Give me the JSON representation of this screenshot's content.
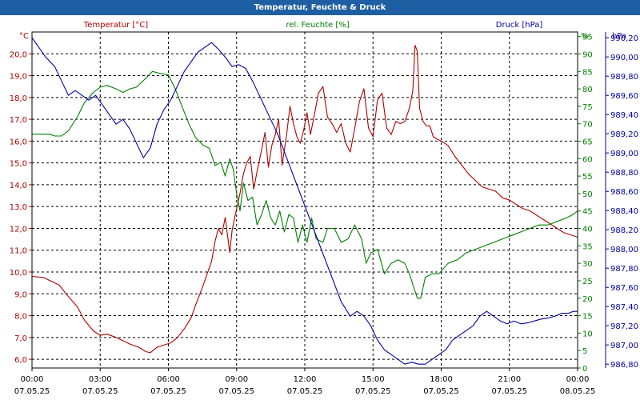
{
  "window": {
    "title": "Temperatur, Feuchte & Druck"
  },
  "chart_data": {
    "type": "line",
    "title": "Temperatur, Feuchte & Druck",
    "grid": true,
    "x_ticks": [
      {
        "time": "00:00",
        "date": "07.05.25"
      },
      {
        "time": "03:00",
        "date": "07.05.25"
      },
      {
        "time": "06:00",
        "date": "07.05.25"
      },
      {
        "time": "09:00",
        "date": "07.05.25"
      },
      {
        "time": "12:00",
        "date": "07.05.25"
      },
      {
        "time": "15:00",
        "date": "07.05.25"
      },
      {
        "time": "18:00",
        "date": "07.05.25"
      },
      {
        "time": "21:00",
        "date": "07.05.25"
      },
      {
        "time": "00:00",
        "date": "08.05.25"
      }
    ],
    "x_range_hours": [
      0,
      24
    ],
    "axes": {
      "temperature": {
        "label": "Temperatur [°C]",
        "unit": "°C",
        "color": "#b00000",
        "ylim": [
          5.6,
          21.0
        ],
        "ticks": [
          "6,0",
          "7,0",
          "8,0",
          "9,0",
          "10,0",
          "11,0",
          "12,0",
          "13,0",
          "14,0",
          "15,0",
          "16,0",
          "17,0",
          "18,0",
          "19,0",
          "20,0"
        ]
      },
      "humidity": {
        "label": "rel. Feuchte [%]",
        "unit": "%",
        "color": "#008000",
        "ylim": [
          0,
          96.3
        ],
        "ticks": [
          "0",
          "5",
          "10",
          "15",
          "20",
          "25",
          "30",
          "35",
          "40",
          "45",
          "50",
          "55",
          "60",
          "65",
          "70",
          "75",
          "80",
          "85",
          "90",
          "95"
        ]
      },
      "pressure": {
        "label": "Druck [hPa]",
        "unit": "hPa",
        "color": "#0000a0",
        "ylim": [
          986.76,
          990.26
        ],
        "ticks": [
          "986,80",
          "987,00",
          "987,20",
          "987,40",
          "987,60",
          "987,80",
          "988,00",
          "988,20",
          "988,40",
          "988,60",
          "988,80",
          "989,00",
          "989,20",
          "989,40",
          "989,60",
          "989,80",
          "990,00",
          "990,20"
        ]
      }
    },
    "series": [
      {
        "name": "Temperatur [°C]",
        "axis": "temperature",
        "color": "#b00000",
        "x": [
          0,
          0.5,
          0.8,
          1.2,
          1.5,
          2.0,
          2.3,
          2.7,
          3.0,
          3.3,
          3.7,
          4.0,
          4.3,
          4.7,
          5.0,
          5.2,
          5.5,
          5.8,
          6.1,
          6.4,
          6.7,
          7.0,
          7.2,
          7.5,
          7.7,
          7.9,
          8.05,
          8.2,
          8.35,
          8.5,
          8.7,
          8.8,
          8.9,
          9.0,
          9.15,
          9.3,
          9.45,
          9.6,
          9.75,
          9.9,
          10.1,
          10.25,
          10.4,
          10.55,
          10.7,
          10.85,
          11.0,
          11.2,
          11.35,
          11.5,
          11.65,
          11.8,
          11.95,
          12.1,
          12.25,
          12.4,
          12.6,
          12.8,
          13.0,
          13.2,
          13.4,
          13.6,
          13.8,
          14.0,
          14.2,
          14.4,
          14.6,
          14.8,
          15.0,
          15.2,
          15.4,
          15.6,
          15.8,
          16.0,
          16.2,
          16.4,
          16.6,
          16.75,
          16.85,
          16.95,
          17.05,
          17.2,
          17.35,
          17.5,
          17.65,
          17.8,
          18.0,
          18.3,
          18.6,
          18.9,
          19.2,
          19.5,
          19.8,
          20.1,
          20.4,
          20.7,
          21.0,
          21.3,
          21.6,
          21.9,
          22.2,
          22.5,
          22.8,
          23.1,
          23.4,
          23.7,
          24.0
        ],
        "values": [
          9.8,
          9.75,
          9.6,
          9.4,
          9.0,
          8.4,
          7.8,
          7.3,
          7.1,
          7.15,
          7.0,
          6.85,
          6.7,
          6.55,
          6.35,
          6.3,
          6.55,
          6.65,
          6.75,
          7.0,
          7.4,
          7.9,
          8.5,
          9.3,
          9.9,
          10.5,
          11.4,
          12.0,
          11.7,
          12.5,
          10.9,
          11.9,
          12.4,
          12.9,
          13.6,
          14.5,
          15.0,
          15.3,
          13.8,
          14.6,
          15.6,
          16.4,
          14.8,
          15.8,
          16.3,
          17.0,
          14.9,
          16.3,
          17.6,
          16.8,
          16.2,
          15.9,
          16.5,
          17.3,
          16.3,
          17.1,
          18.2,
          18.5,
          17.1,
          16.8,
          16.4,
          16.8,
          15.9,
          15.5,
          16.6,
          17.8,
          18.4,
          16.6,
          16.2,
          17.9,
          18.2,
          16.6,
          16.3,
          16.9,
          16.8,
          16.9,
          17.5,
          18.3,
          20.4,
          20.1,
          17.5,
          16.9,
          16.7,
          16.7,
          16.2,
          16.1,
          16.0,
          15.8,
          15.3,
          14.9,
          14.5,
          14.2,
          13.9,
          13.8,
          13.7,
          13.4,
          13.3,
          13.1,
          12.9,
          12.8,
          12.6,
          12.4,
          12.2,
          12.0,
          11.8,
          11.7,
          11.6
        ]
      },
      {
        "name": "rel. Feuchte [%]",
        "axis": "humidity",
        "color": "#008000",
        "x": [
          0,
          0.5,
          0.8,
          1.0,
          1.3,
          1.6,
          2.0,
          2.3,
          2.7,
          3.0,
          3.3,
          3.7,
          4.0,
          4.3,
          4.6,
          5.0,
          5.3,
          5.6,
          6.0,
          6.3,
          6.6,
          6.9,
          7.2,
          7.5,
          7.8,
          8.05,
          8.3,
          8.5,
          8.7,
          8.85,
          9.0,
          9.15,
          9.3,
          9.5,
          9.7,
          9.9,
          10.1,
          10.3,
          10.5,
          10.7,
          10.9,
          11.1,
          11.3,
          11.5,
          11.7,
          11.9,
          12.1,
          12.3,
          12.5,
          12.8,
          13.0,
          13.3,
          13.6,
          13.9,
          14.2,
          14.5,
          14.7,
          14.9,
          15.2,
          15.5,
          15.8,
          16.1,
          16.4,
          16.6,
          16.8,
          16.95,
          17.1,
          17.3,
          17.6,
          17.9,
          18.3,
          18.7,
          19.1,
          19.5,
          19.9,
          20.3,
          20.7,
          21.1,
          21.5,
          21.9,
          22.3,
          22.7,
          23.1,
          23.5,
          23.8,
          24.0
        ],
        "values": [
          67,
          67,
          67,
          66.5,
          66.5,
          68,
          72,
          76,
          79,
          80.5,
          81,
          80,
          79,
          80,
          80.5,
          83,
          85,
          84.5,
          84,
          80,
          75,
          70,
          66,
          64,
          63,
          58,
          59,
          55,
          60,
          57,
          50,
          45,
          53,
          48,
          49,
          41,
          44,
          48,
          43,
          41,
          45,
          39,
          44,
          43,
          36,
          41,
          36,
          43,
          37,
          36,
          40,
          40,
          36,
          37,
          41,
          37,
          30,
          33,
          34,
          27,
          30,
          31,
          30,
          27,
          23,
          20,
          20,
          26,
          27,
          27,
          30,
          31,
          33,
          34,
          35,
          36,
          37,
          38,
          39,
          40,
          41,
          41,
          42,
          43,
          44,
          45
        ]
      },
      {
        "name": "Druck [hPa]",
        "axis": "pressure",
        "color": "#0000a0",
        "x": [
          0,
          0.3,
          0.6,
          1.0,
          1.3,
          1.6,
          1.9,
          2.2,
          2.5,
          2.8,
          3.1,
          3.4,
          3.7,
          4.0,
          4.3,
          4.6,
          4.9,
          5.2,
          5.5,
          5.8,
          6.1,
          6.4,
          6.7,
          7.0,
          7.3,
          7.6,
          7.9,
          8.2,
          8.5,
          8.8,
          9.1,
          9.4,
          9.7,
          10.0,
          10.4,
          10.8,
          11.2,
          11.6,
          12.0,
          12.4,
          12.8,
          13.2,
          13.6,
          14.0,
          14.3,
          14.6,
          14.9,
          15.2,
          15.5,
          15.8,
          16.1,
          16.4,
          16.7,
          17.0,
          17.3,
          17.6,
          17.9,
          18.2,
          18.5,
          18.8,
          19.1,
          19.4,
          19.7,
          20.0,
          20.3,
          20.6,
          20.9,
          21.2,
          21.5,
          21.8,
          22.1,
          22.4,
          22.7,
          23.0,
          23.3,
          23.6,
          23.8,
          24.0
        ],
        "values": [
          990.2,
          990.1,
          990.0,
          989.9,
          989.75,
          989.6,
          989.65,
          989.6,
          989.55,
          989.6,
          989.5,
          989.4,
          989.3,
          989.35,
          989.25,
          989.1,
          988.95,
          989.05,
          989.3,
          989.45,
          989.55,
          989.7,
          989.85,
          989.95,
          990.05,
          990.1,
          990.15,
          990.08,
          990.0,
          989.9,
          989.92,
          989.88,
          989.75,
          989.6,
          989.4,
          989.2,
          988.95,
          988.7,
          988.45,
          988.2,
          987.95,
          987.7,
          987.45,
          987.3,
          987.35,
          987.3,
          987.2,
          987.05,
          986.95,
          986.9,
          986.85,
          986.8,
          986.82,
          986.8,
          986.8,
          986.85,
          986.9,
          986.95,
          987.05,
          987.1,
          987.15,
          987.2,
          987.3,
          987.35,
          987.3,
          987.25,
          987.22,
          987.25,
          987.22,
          987.23,
          987.25,
          987.27,
          987.28,
          987.3,
          987.33,
          987.33,
          987.35,
          987.35
        ]
      }
    ]
  }
}
